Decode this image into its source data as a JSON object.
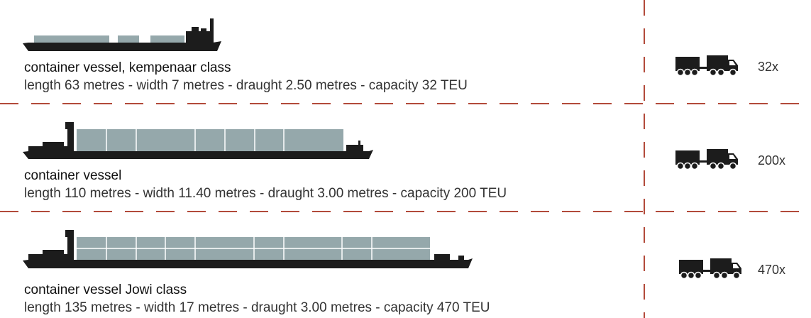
{
  "colors": {
    "hull": "#1c1c1c",
    "cargo": "#95a8ab",
    "divider": "#b24a3a"
  },
  "icons": {
    "truck": "truck-with-trailer-icon",
    "ship": "barge-silhouette-icon"
  },
  "vessels": [
    {
      "title": "container vessel, kempenaar class",
      "specs": "length 63 metres - width 7 metres - draught 2.50 metres - capacity 32 TEU",
      "multiplier": "32x"
    },
    {
      "title": "container vessel",
      "specs": "length 110 metres - width 11.40 metres - draught 3.00 metres - capacity 200 TEU",
      "multiplier": "200x"
    },
    {
      "title": "container vessel Jowi class",
      "specs": "length 135 metres - width 17 metres - draught 3.00 metres - capacity 470 TEU",
      "multiplier": "470x"
    }
  ]
}
